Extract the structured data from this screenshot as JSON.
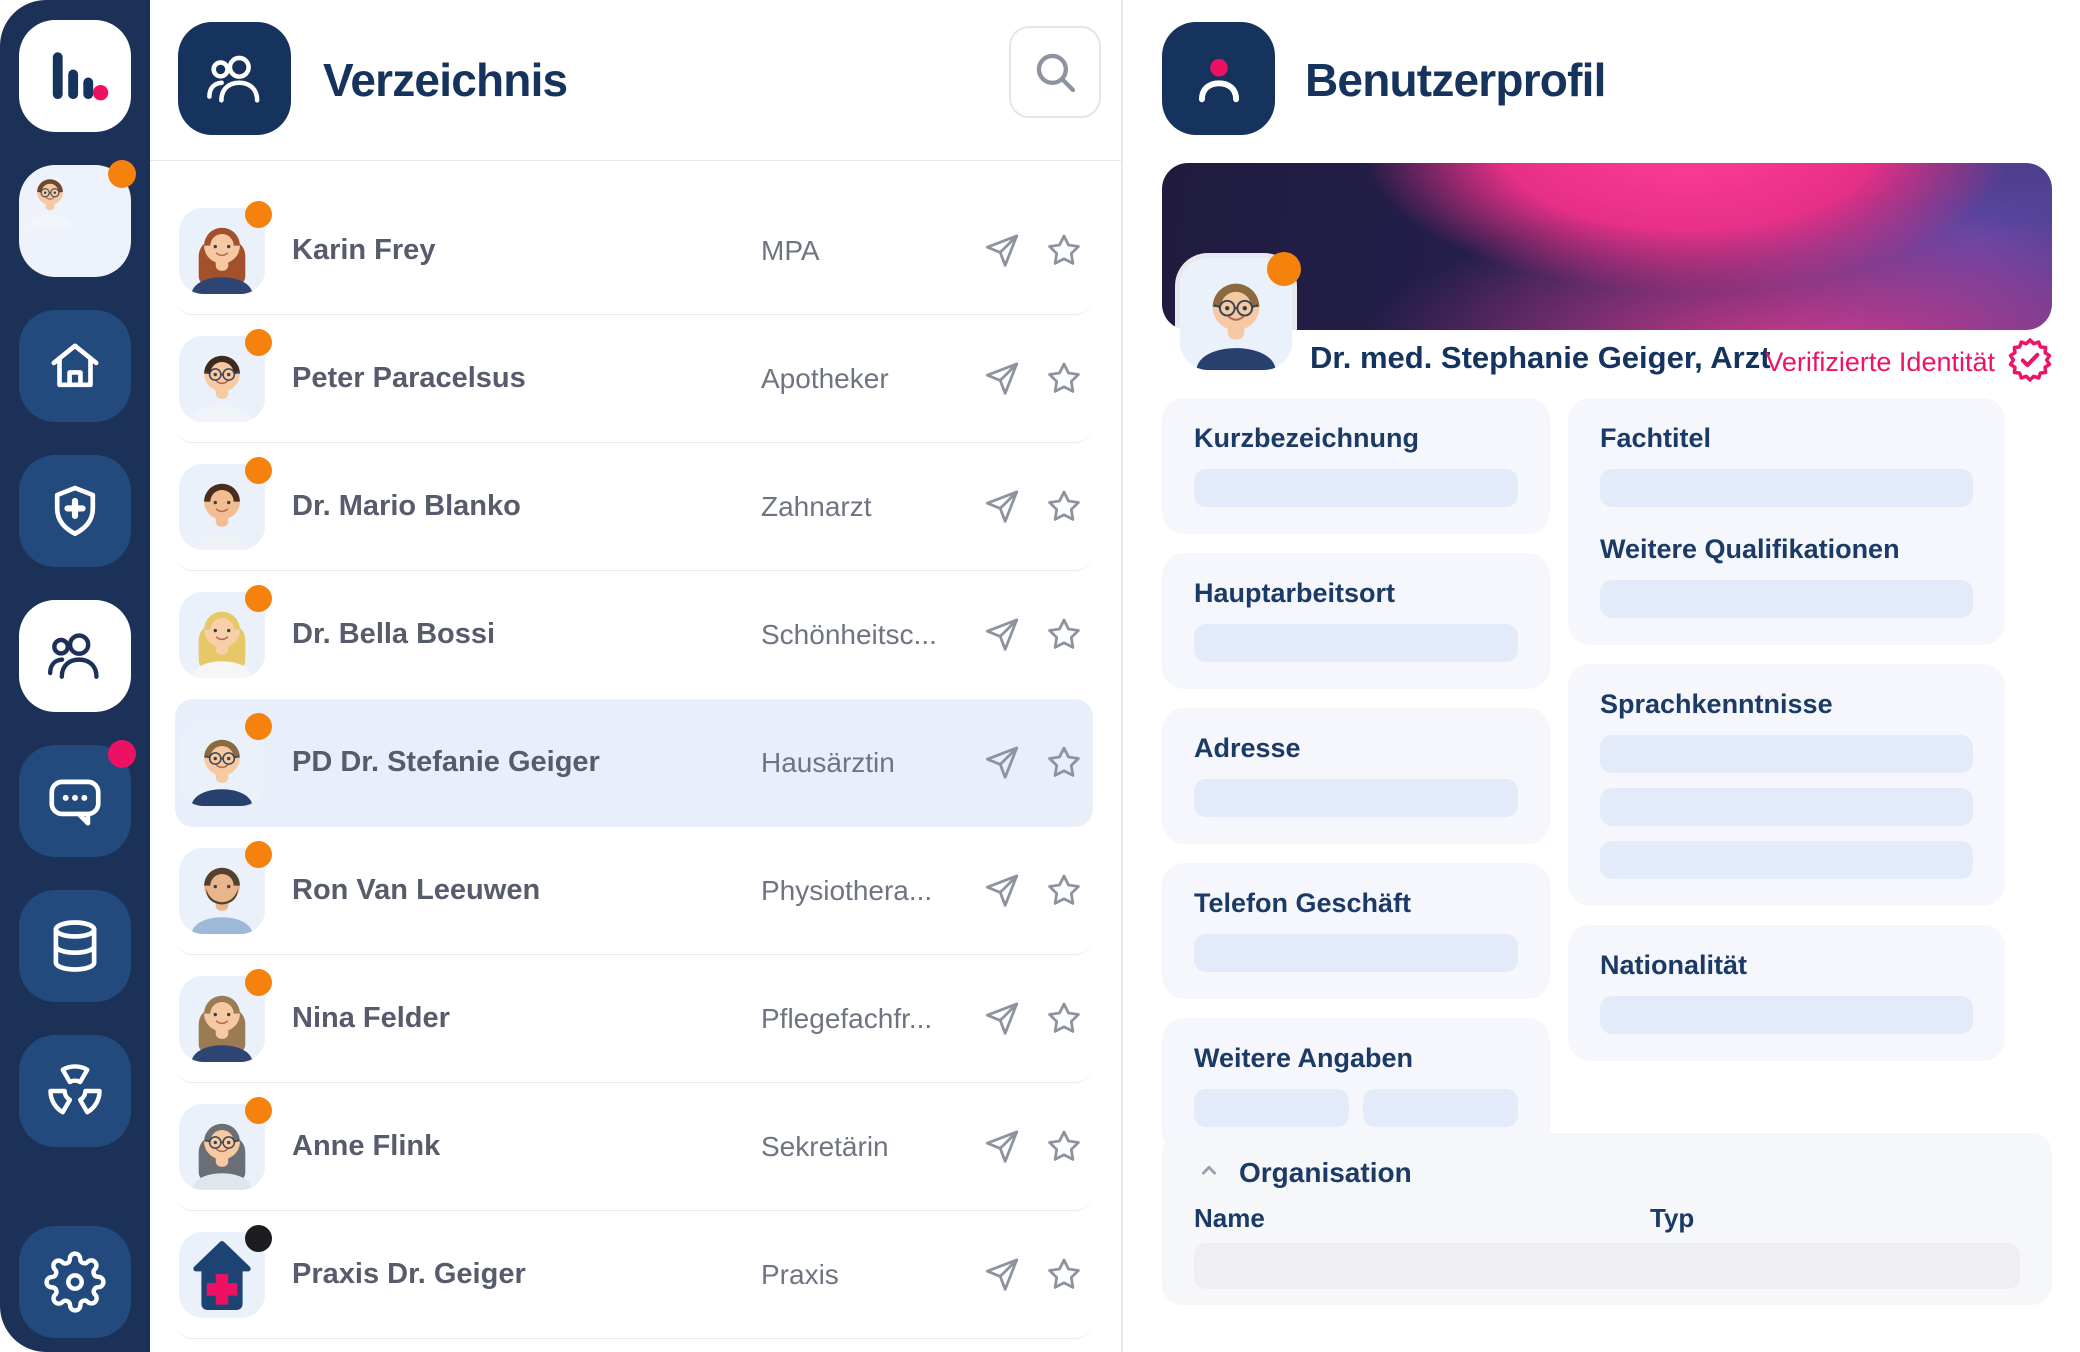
{
  "colors": {
    "sidebar_bg": "#1b3157",
    "sidebar_button": "#224a7c",
    "navy": "#16335e",
    "pink": "#ed1164",
    "orange": "#f5820d",
    "black_status": "#1d1d1f",
    "selected_row": "#e9effa",
    "card_bg": "#f5f7fc",
    "pill": "#e3eafa"
  },
  "sidebar": {
    "logo_icon": "bar-chart-logo",
    "items": [
      {
        "id": "profile-avatar",
        "icon": "avatar-man",
        "badge": "#f5820d",
        "kind": "avatar"
      },
      {
        "id": "home",
        "icon": "home-icon"
      },
      {
        "id": "insurance",
        "icon": "shield-plus-icon"
      },
      {
        "id": "directory",
        "icon": "users-icon",
        "active": true
      },
      {
        "id": "messages",
        "icon": "chat-icon",
        "badge": "#ed1164"
      },
      {
        "id": "database",
        "icon": "database-icon"
      },
      {
        "id": "radiology",
        "icon": "radiation-icon"
      },
      {
        "id": "settings",
        "icon": "gear-icon",
        "bottom": true
      }
    ]
  },
  "directory": {
    "title": "Verzeichnis",
    "header_icon": "users-icon",
    "search_icon": "search-icon",
    "row_action_icons": [
      "send-icon",
      "star-icon"
    ],
    "contacts": [
      {
        "name": "Karin Frey",
        "role": "MPA",
        "status": "#f5820d",
        "avatar": {
          "kind": "person",
          "hair": "#a3502c",
          "skin": "#f7c9a3",
          "shirt": "#2e4472",
          "glasses": false,
          "long": true
        }
      },
      {
        "name": "Peter Paracelsus",
        "role": "Apotheker",
        "status": "#f5820d",
        "avatar": {
          "kind": "person",
          "hair": "#3d2b20",
          "skin": "#f7c9a3",
          "shirt": "#f0f3f7",
          "glasses": true,
          "long": false
        }
      },
      {
        "name": "Dr. Mario Blanko",
        "role": "Zahnarzt",
        "status": "#f5820d",
        "avatar": {
          "kind": "person",
          "hair": "#4a2e1d",
          "skin": "#f3bd92",
          "shirt": "#eef2f6",
          "glasses": false,
          "long": false
        }
      },
      {
        "name": "Dr. Bella Bossi",
        "role": "Schönheitsc...",
        "status": "#f5820d",
        "avatar": {
          "kind": "person",
          "hair": "#e7c868",
          "skin": "#f8cfa9",
          "shirt": "#f4f6f8",
          "glasses": false,
          "long": true
        }
      },
      {
        "name": "PD Dr. Stefanie Geiger",
        "role": "Hausärztin",
        "status": "#f5820d",
        "selected": true,
        "avatar": {
          "kind": "person",
          "hair": "#8a6b3f",
          "skin": "#f7c9a3",
          "shirt": "#27406e",
          "glasses": true,
          "long": false
        }
      },
      {
        "name": "Ron Van Leeuwen",
        "role": "Physiothera...",
        "status": "#f5820d",
        "avatar": {
          "kind": "person",
          "hair": "#54412f",
          "skin": "#eab48c",
          "shirt": "#9db8d8",
          "glasses": false,
          "long": false,
          "beard": true
        }
      },
      {
        "name": "Nina Felder",
        "role": "Pflegefachfr...",
        "status": "#f5820d",
        "avatar": {
          "kind": "person",
          "hair": "#9b7b52",
          "skin": "#f7c9a3",
          "shirt": "#2e4472",
          "glasses": false,
          "long": true
        }
      },
      {
        "name": "Anne Flink",
        "role": "Sekretärin",
        "status": "#f5820d",
        "avatar": {
          "kind": "person",
          "hair": "#6b6e75",
          "skin": "#f7c9a3",
          "shirt": "#dfe6ee",
          "glasses": true,
          "long": true
        }
      },
      {
        "name": "Praxis Dr. Geiger",
        "role": "Praxis",
        "status": "#1d1d1f",
        "avatar": {
          "kind": "clinic"
        }
      }
    ]
  },
  "profile": {
    "title": "Benutzerprofil",
    "header_icon": "person-icon",
    "display_name": "Dr. med. Stephanie Geiger, Arzt",
    "verified_label": "Verifizierte Identität",
    "verified_icon": "seal-check-icon",
    "avatar": {
      "kind": "person",
      "hair": "#8a6b3f",
      "skin": "#f7c9a3",
      "shirt": "#27406e",
      "glasses": true,
      "long": false
    },
    "left_fields": [
      {
        "label": "Kurzbezeichnung",
        "pills": [
          1
        ]
      },
      {
        "label": "Hauptarbeitsort",
        "pills": [
          1
        ]
      },
      {
        "label": "Adresse",
        "pills": [
          1
        ]
      },
      {
        "label": "Telefon Geschäft",
        "pills": [
          1
        ]
      },
      {
        "label": "Weitere Angaben",
        "pills": [
          0.5,
          0.5
        ]
      }
    ],
    "right_cards": [
      {
        "groups": [
          {
            "label": "Fachtitel",
            "pills": [
              1
            ]
          },
          {
            "label": "Weitere Qualifikationen",
            "pills": [
              1
            ]
          }
        ]
      },
      {
        "groups": [
          {
            "label": "Sprachkenntnisse",
            "pills": [
              1,
              1,
              1
            ]
          }
        ]
      },
      {
        "groups": [
          {
            "label": "Nationalität",
            "pills": [
              1
            ]
          }
        ]
      }
    ],
    "organisation": {
      "label": "Organisation",
      "collapse_icon": "chevron-up-icon",
      "columns": [
        "Name",
        "Typ"
      ],
      "placeholder_rows": 1
    }
  }
}
